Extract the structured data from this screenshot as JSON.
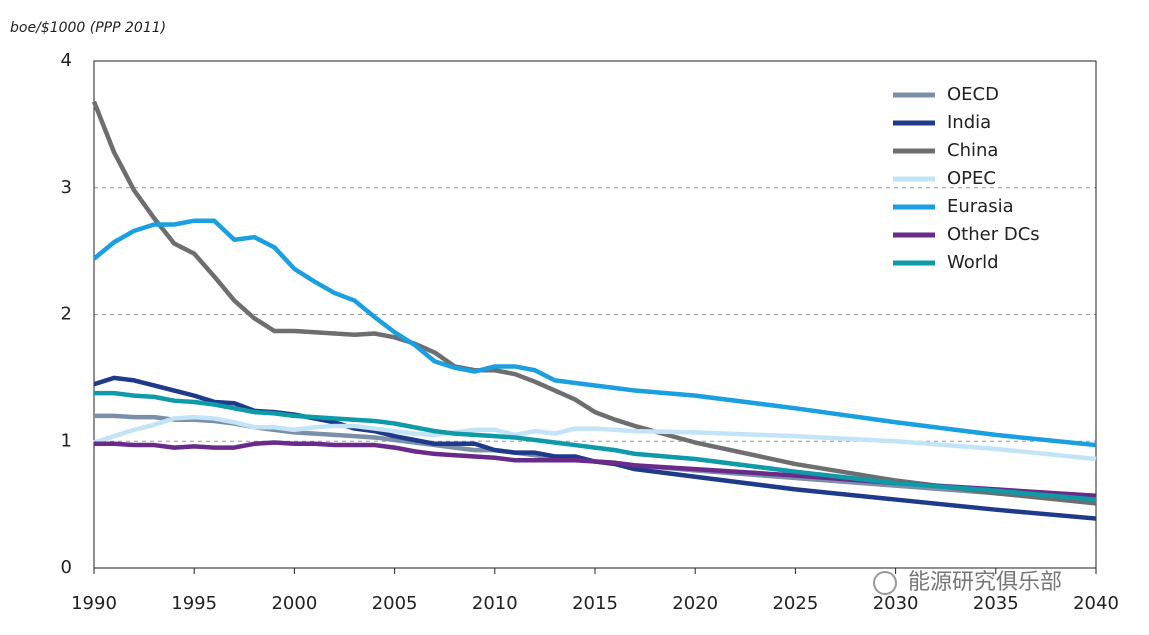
{
  "chart_data": {
    "type": "line",
    "y_label": "boe/$1000 (PPP 2011)",
    "x": [
      1990,
      1991,
      1992,
      1993,
      1994,
      1995,
      1996,
      1997,
      1998,
      1999,
      2000,
      2001,
      2002,
      2003,
      2004,
      2005,
      2006,
      2007,
      2008,
      2009,
      2010,
      2011,
      2012,
      2013,
      2014,
      2015,
      2016,
      2017,
      2020,
      2025,
      2030,
      2035,
      2040
    ],
    "series": [
      {
        "name": "OECD",
        "color": "#7b8fa9",
        "values": [
          1.2,
          1.2,
          1.19,
          1.19,
          1.17,
          1.17,
          1.16,
          1.14,
          1.11,
          1.09,
          1.07,
          1.06,
          1.05,
          1.04,
          1.03,
          1.01,
          0.99,
          0.97,
          0.95,
          0.93,
          0.93,
          0.91,
          0.89,
          0.87,
          0.86,
          0.84,
          0.83,
          0.81,
          0.77,
          0.71,
          0.65,
          0.59,
          0.54
        ]
      },
      {
        "name": "India",
        "color": "#1f3a8a",
        "values": [
          1.45,
          1.5,
          1.48,
          1.44,
          1.4,
          1.36,
          1.31,
          1.3,
          1.24,
          1.23,
          1.21,
          1.18,
          1.15,
          1.1,
          1.08,
          1.04,
          1.01,
          0.98,
          0.98,
          0.98,
          0.93,
          0.91,
          0.91,
          0.88,
          0.88,
          0.84,
          0.82,
          0.78,
          0.72,
          0.62,
          0.54,
          0.46,
          0.39
        ]
      },
      {
        "name": "China",
        "color": "#6d6e70",
        "values": [
          3.68,
          3.28,
          2.98,
          2.76,
          2.56,
          2.48,
          2.3,
          2.11,
          1.97,
          1.87,
          1.87,
          1.86,
          1.85,
          1.84,
          1.85,
          1.82,
          1.77,
          1.7,
          1.59,
          1.56,
          1.56,
          1.53,
          1.47,
          1.4,
          1.33,
          1.23,
          1.17,
          1.12,
          0.99,
          0.82,
          0.69,
          0.59,
          0.51
        ]
      },
      {
        "name": "OPEC",
        "color": "#c2e4f6",
        "values": [
          0.99,
          1.04,
          1.09,
          1.13,
          1.18,
          1.19,
          1.18,
          1.15,
          1.11,
          1.11,
          1.09,
          1.11,
          1.12,
          1.12,
          1.1,
          1.08,
          1.06,
          1.05,
          1.07,
          1.09,
          1.09,
          1.05,
          1.08,
          1.06,
          1.1,
          1.1,
          1.09,
          1.08,
          1.07,
          1.04,
          1.0,
          0.94,
          0.86
        ]
      },
      {
        "name": "Eurasia",
        "color": "#1a9fe0",
        "values": [
          2.44,
          2.57,
          2.66,
          2.71,
          2.71,
          2.74,
          2.74,
          2.59,
          2.61,
          2.53,
          2.36,
          2.26,
          2.17,
          2.11,
          1.98,
          1.86,
          1.76,
          1.63,
          1.58,
          1.55,
          1.59,
          1.59,
          1.56,
          1.48,
          1.46,
          1.44,
          1.42,
          1.4,
          1.36,
          1.26,
          1.15,
          1.05,
          0.97
        ]
      },
      {
        "name": "Other DCs",
        "color": "#6a2a8a",
        "values": [
          0.98,
          0.98,
          0.97,
          0.97,
          0.95,
          0.96,
          0.95,
          0.95,
          0.98,
          0.99,
          0.98,
          0.98,
          0.97,
          0.97,
          0.97,
          0.95,
          0.92,
          0.9,
          0.89,
          0.88,
          0.87,
          0.85,
          0.85,
          0.85,
          0.85,
          0.84,
          0.83,
          0.81,
          0.78,
          0.73,
          0.67,
          0.62,
          0.57
        ]
      },
      {
        "name": "World",
        "color": "#0e9aa7",
        "values": [
          1.38,
          1.38,
          1.36,
          1.35,
          1.32,
          1.31,
          1.29,
          1.26,
          1.23,
          1.22,
          1.2,
          1.19,
          1.18,
          1.17,
          1.16,
          1.14,
          1.11,
          1.08,
          1.06,
          1.05,
          1.04,
          1.03,
          1.01,
          0.99,
          0.97,
          0.95,
          0.93,
          0.9,
          0.86,
          0.76,
          0.67,
          0.61,
          0.54
        ]
      }
    ],
    "xlim": [
      1990,
      2040
    ],
    "xticks": [
      1990,
      1995,
      2000,
      2005,
      2010,
      2015,
      2020,
      2025,
      2030,
      2035,
      2040
    ],
    "ylim": [
      0,
      4
    ],
    "yticks": [
      0,
      1,
      2,
      3,
      4
    ],
    "grid": true,
    "legend": "top-right"
  },
  "watermark": "能源研究俱乐部"
}
